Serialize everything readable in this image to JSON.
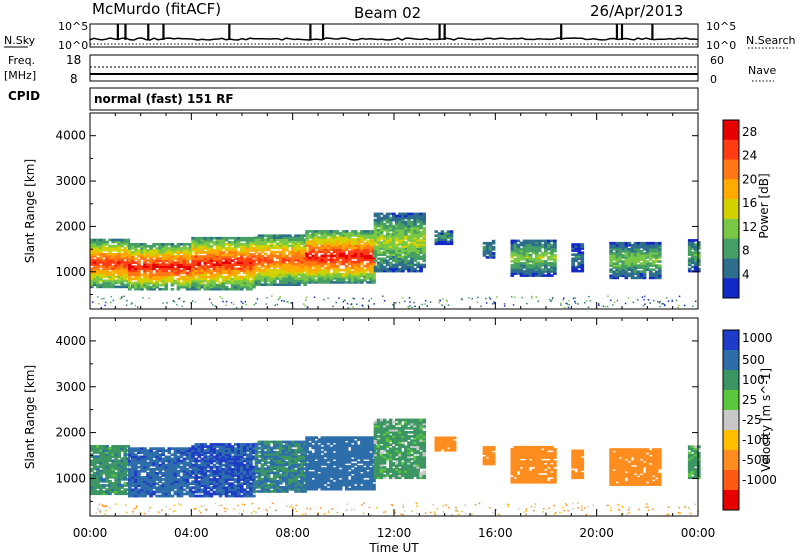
{
  "header": {
    "station": "McMurdo (fitACF)",
    "beam": "Beam 02",
    "date": "26/Apr/2013"
  },
  "strips": {
    "nsky_label": "N.Sky",
    "nsearch_label": "N.Search",
    "nsky_ticks": [
      "10^5",
      "10^0"
    ],
    "nsearch_ticks": [
      "10^5",
      "10^0"
    ],
    "freq_label_1": "Freq.",
    "freq_label_2": "[MHz]",
    "freq_ticks": [
      "18",
      "8"
    ],
    "nave_label": "Nave",
    "nave_ticks": [
      "60",
      "0"
    ],
    "cpid_label": "CPID",
    "cpid_text": "normal (fast) 151 RF"
  },
  "colors": {
    "power_scale": [
      "#1428c8",
      "#2d6e8c",
      "#46a064",
      "#78c846",
      "#d2d200",
      "#ffaa00",
      "#ff7814",
      "#ff3c14",
      "#e60000"
    ],
    "velocity_scale": [
      "#1e3cc8",
      "#2d6eaa",
      "#3c9664",
      "#5ac83c",
      "#c8c8c8",
      "#ffbe00",
      "#ff8c1e",
      "#ff5a14",
      "#e60000"
    ]
  },
  "chart_data": [
    {
      "type": "heatmap",
      "panel": "power",
      "ylabel": "Slant Range [km]",
      "ylim": [
        180,
        4500
      ],
      "yticks": [
        "1000",
        "2000",
        "3000",
        "4000"
      ],
      "ytick_values": [
        1000,
        2000,
        3000,
        4000
      ],
      "xlim": [
        0,
        24
      ],
      "colorbar_label": "Power [dB]",
      "colorbar_ticks": [
        "4",
        "8",
        "12",
        "16",
        "20",
        "24",
        "28"
      ],
      "colorbar_range": [
        0,
        30
      ],
      "echo_regions": [
        {
          "t_start": 0.0,
          "t_end": 1.5,
          "r_min": 650,
          "r_max": 1700,
          "peak_db": 26
        },
        {
          "t_start": 1.5,
          "t_end": 4.0,
          "r_min": 600,
          "r_max": 1600,
          "peak_db": 28
        },
        {
          "t_start": 4.0,
          "t_end": 6.5,
          "r_min": 600,
          "r_max": 1750,
          "peak_db": 27
        },
        {
          "t_start": 6.5,
          "t_end": 8.5,
          "r_min": 700,
          "r_max": 1800,
          "peak_db": 24
        },
        {
          "t_start": 8.5,
          "t_end": 11.2,
          "r_min": 750,
          "r_max": 1900,
          "peak_db": 28
        },
        {
          "t_start": 11.2,
          "t_end": 13.2,
          "r_min": 1000,
          "r_max": 2300,
          "peak_db": 14
        },
        {
          "t_start": 13.6,
          "t_end": 14.2,
          "r_min": 1600,
          "r_max": 1900,
          "peak_db": 8
        },
        {
          "t_start": 15.5,
          "t_end": 15.9,
          "r_min": 1300,
          "r_max": 1700,
          "peak_db": 8
        },
        {
          "t_start": 16.6,
          "t_end": 18.3,
          "r_min": 900,
          "r_max": 1700,
          "peak_db": 12
        },
        {
          "t_start": 19.0,
          "t_end": 19.4,
          "r_min": 1000,
          "r_max": 1600,
          "peak_db": 6
        },
        {
          "t_start": 20.5,
          "t_end": 22.5,
          "r_min": 850,
          "r_max": 1650,
          "peak_db": 12
        },
        {
          "t_start": 23.6,
          "t_end": 24.0,
          "r_min": 1000,
          "r_max": 1700,
          "peak_db": 10
        }
      ]
    },
    {
      "type": "heatmap",
      "panel": "velocity",
      "ylabel": "Slant Range [km]",
      "xlabel": "Time UT",
      "ylim": [
        180,
        4500
      ],
      "yticks": [
        "1000",
        "2000",
        "3000",
        "4000"
      ],
      "ytick_values": [
        1000,
        2000,
        3000,
        4000
      ],
      "xlim": [
        0,
        24
      ],
      "xticks": [
        "00:00",
        "04:00",
        "08:00",
        "12:00",
        "16:00",
        "20:00",
        "00:00"
      ],
      "xtick_values": [
        0,
        4,
        8,
        12,
        16,
        20,
        24
      ],
      "colorbar_label": "Velocity [m s^-1]",
      "colorbar_ticks": [
        "1000",
        "500",
        "100",
        "25",
        "-25",
        "-100",
        "-500",
        "-1000"
      ],
      "echo_regions": [
        {
          "t_start": 0.0,
          "t_end": 1.5,
          "r_min": 650,
          "r_max": 1700,
          "v": 200
        },
        {
          "t_start": 1.5,
          "t_end": 4.0,
          "r_min": 600,
          "r_max": 1650,
          "v": 600
        },
        {
          "t_start": 4.0,
          "t_end": 6.5,
          "r_min": 600,
          "r_max": 1750,
          "v": 700
        },
        {
          "t_start": 6.5,
          "t_end": 8.5,
          "r_min": 700,
          "r_max": 1800,
          "v": 300
        },
        {
          "t_start": 8.5,
          "t_end": 11.2,
          "r_min": 750,
          "r_max": 1900,
          "v": 500
        },
        {
          "t_start": 11.2,
          "t_end": 13.2,
          "r_min": 1000,
          "r_max": 2300,
          "v": 150
        },
        {
          "t_start": 13.6,
          "t_end": 14.4,
          "r_min": 1600,
          "r_max": 1900,
          "v": -300
        },
        {
          "t_start": 15.5,
          "t_end": 15.9,
          "r_min": 1300,
          "r_max": 1700,
          "v": -300
        },
        {
          "t_start": 16.6,
          "t_end": 18.3,
          "r_min": 900,
          "r_max": 1700,
          "v": -300
        },
        {
          "t_start": 19.0,
          "t_end": 19.4,
          "r_min": 1000,
          "r_max": 1600,
          "v": -300
        },
        {
          "t_start": 20.5,
          "t_end": 22.5,
          "r_min": 850,
          "r_max": 1650,
          "v": -300
        },
        {
          "t_start": 23.6,
          "t_end": 24.0,
          "r_min": 1000,
          "r_max": 1700,
          "v": 150
        }
      ]
    }
  ]
}
